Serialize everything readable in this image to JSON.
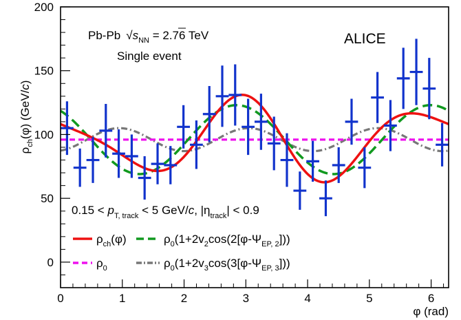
{
  "chart_data": {
    "type": "scatter",
    "title": "",
    "xlabel": "φ (rad)",
    "ylabel": "ρch(φ) (GeV/c)",
    "xlim": [
      0,
      6.283
    ],
    "ylim": [
      -20,
      200
    ],
    "x_ticks": [
      "0",
      "1",
      "2",
      "3",
      "4",
      "5",
      "6"
    ],
    "y_ticks": [
      "0",
      "50",
      "100",
      "150",
      "200"
    ],
    "grid": false,
    "annotations": {
      "collision": "Pb-Pb",
      "energy": "√sNN = 2.76 TeV",
      "energy_sqrt": "√",
      "energy_s": "s",
      "energy_sub": "NN",
      "energy_rest": " = 2.76 TeV",
      "event": "Single event",
      "experiment": "ALICE",
      "cuts_a": "0.15 < ",
      "cuts_p": "p",
      "cuts_psub": "T, track",
      "cuts_b": " < 5 GeV/",
      "cuts_c": "c",
      "cuts_d": ", |η",
      "cuts_etasub": "track",
      "cuts_e": "| < 0.9"
    },
    "ylabel_parts": {
      "rho": "ρ",
      "sub": "ch",
      "rest": "(φ) (GeV/",
      "c": "c",
      "close": ")"
    },
    "legend": [
      {
        "id": "rho_ch",
        "main": "ρ",
        "sub": "ch",
        "rest": "(φ)",
        "color": "#ee1111",
        "dash": "solid"
      },
      {
        "id": "rho0",
        "main": "ρ",
        "sub": "0",
        "rest": "",
        "color": "#ee11ee",
        "dash": "dashed"
      },
      {
        "id": "v2",
        "main": "ρ",
        "sub": "0",
        "rest": "(1+2v",
        "sub2": "2",
        "rest2": "cos(2[φ-Ψ",
        "sub3": "EP, 2",
        "rest3": "]))",
        "color": "#11991f",
        "dash": "dashed"
      },
      {
        "id": "v3",
        "main": "ρ",
        "sub": "0",
        "rest": "(1+2v",
        "sub2": "3",
        "rest2": "cos(3[φ-Ψ",
        "sub3": "EP, 3",
        "rest3": "]))",
        "color": "#777777",
        "dash": "dashdot"
      }
    ],
    "points": {
      "name": "data",
      "color": "#1133cc",
      "x": [
        0.105,
        0.314,
        0.524,
        0.733,
        0.942,
        1.152,
        1.361,
        1.571,
        1.78,
        1.99,
        2.199,
        2.409,
        2.618,
        2.827,
        3.037,
        3.246,
        3.456,
        3.665,
        3.875,
        4.084,
        4.294,
        4.503,
        4.712,
        4.922,
        5.131,
        5.341,
        5.55,
        5.76,
        5.969,
        6.178
      ],
      "y": [
        105,
        74,
        80,
        103,
        85,
        83,
        66,
        77,
        76,
        106,
        92,
        116,
        130,
        131,
        106,
        110,
        93,
        80,
        56,
        79,
        50,
        76,
        110,
        74,
        129,
        107,
        144,
        149,
        136,
        92
      ],
      "err": [
        21,
        15,
        18,
        21,
        19,
        17,
        17,
        16,
        15,
        17,
        19,
        22,
        24,
        24,
        22,
        22,
        21,
        21,
        15,
        16,
        14,
        14,
        18,
        16,
        20,
        20,
        24,
        26,
        24,
        17
      ]
    },
    "curves": {
      "rho0": 96,
      "v2": {
        "a": 27,
        "psi": 2.85
      },
      "v3": {
        "a": 9,
        "psi": 0.95
      },
      "rho_ch": {
        "a2": 26,
        "psi2": 2.85,
        "a3": 10,
        "psi3": 0.95
      }
    }
  }
}
